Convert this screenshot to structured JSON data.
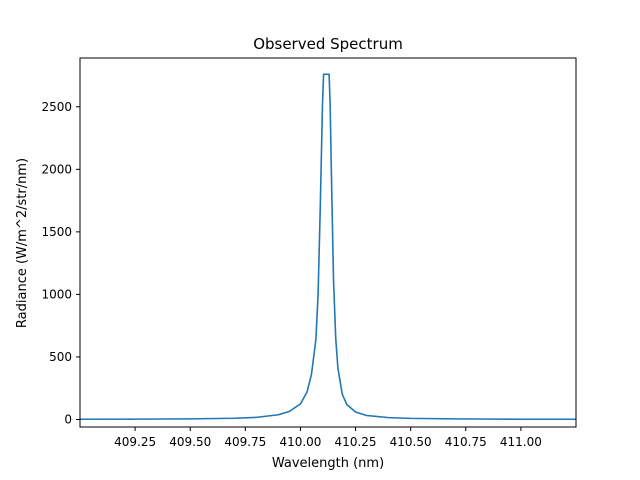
{
  "chart_data": {
    "type": "line",
    "title": "Observed Spectrum",
    "xlabel": "Wavelength (nm)",
    "ylabel": "Radiance (W/m^2/str/nm)",
    "xlim": [
      409.0,
      411.25
    ],
    "ylim": [
      -60,
      2890
    ],
    "xticks": [
      409.25,
      409.5,
      409.75,
      410.0,
      410.25,
      410.5,
      410.75,
      411.0
    ],
    "xtick_labels": [
      "409.25",
      "409.50",
      "409.75",
      "410.00",
      "410.25",
      "410.50",
      "410.75",
      "411.00"
    ],
    "yticks": [
      0,
      500,
      1000,
      1500,
      2000,
      2500
    ],
    "ytick_labels": [
      "0",
      "500",
      "1000",
      "1500",
      "2000",
      "2500"
    ],
    "grid": false,
    "series": [
      {
        "color": "#1f77b4",
        "x": [
          409.0,
          409.25,
          409.5,
          409.7,
          409.8,
          409.9,
          409.95,
          410.0,
          410.03,
          410.05,
          410.07,
          410.08,
          410.09,
          410.1,
          410.105,
          410.11,
          410.12,
          410.13,
          410.135,
          410.14,
          410.15,
          410.16,
          410.17,
          410.19,
          410.21,
          410.25,
          410.3,
          410.4,
          410.5,
          410.7,
          410.9,
          411.0,
          411.25
        ],
        "y": [
          2,
          3,
          5,
          10,
          17,
          38,
          65,
          125,
          220,
          360,
          640,
          1000,
          1700,
          2520,
          2760,
          2760,
          2760,
          2760,
          2500,
          2000,
          1120,
          650,
          410,
          200,
          120,
          60,
          32,
          15,
          9,
          5,
          3,
          2,
          2
        ]
      }
    ]
  }
}
